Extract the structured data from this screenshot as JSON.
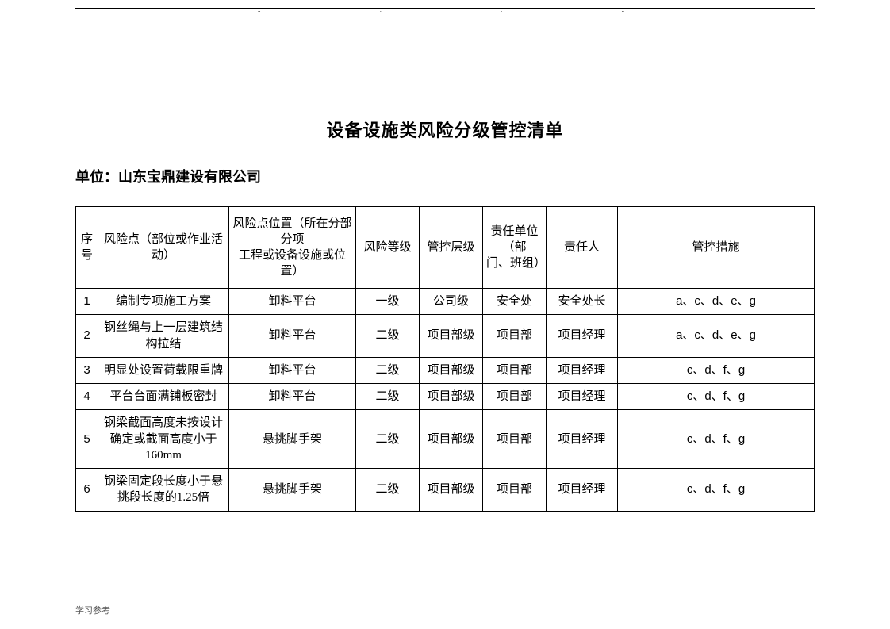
{
  "header_ticks": [
    "..",
    ".",
    ".",
    ".."
  ],
  "title": "设备设施类风险分级管控清单",
  "org_label": "单位：",
  "org_name": "山东宝鼎建设有限公司",
  "columns": {
    "seq": "序号",
    "risk": "风险点（部位或作业活动）",
    "loc_l1": "风险点位置（所在分部分项",
    "loc_l2": "工程或设备设施或位置）",
    "level": "风险等级",
    "ctrl": "管控层级",
    "unit_l1": "责任单位（部",
    "unit_l2": "门、班组）",
    "resp": "责任人",
    "measure": "管控措施"
  },
  "rows": [
    {
      "seq": "1",
      "risk": "编制专项施工方案",
      "loc": "卸料平台",
      "level": "一级",
      "ctrl": "公司级",
      "unit": "安全处",
      "resp": "安全处长",
      "measure": "a、c、d、e、g"
    },
    {
      "seq": "2",
      "risk": "钢丝绳与上一层建筑结构拉结",
      "loc": "卸料平台",
      "level": "二级",
      "ctrl": "项目部级",
      "unit": "项目部",
      "resp": "项目经理",
      "measure": "a、c、d、e、g"
    },
    {
      "seq": "3",
      "risk": "明显处设置荷载限重牌",
      "loc": "卸料平台",
      "level": "二级",
      "ctrl": "项目部级",
      "unit": "项目部",
      "resp": "项目经理",
      "measure": "c、d、f、g"
    },
    {
      "seq": "4",
      "risk": "平台台面满铺板密封",
      "loc": "卸料平台",
      "level": "二级",
      "ctrl": "项目部级",
      "unit": "项目部",
      "resp": "项目经理",
      "measure": "c、d、f、g"
    },
    {
      "seq": "5",
      "risk": "钢梁截面高度未按设计确定或截面高度小于160mm",
      "loc": "悬挑脚手架",
      "level": "二级",
      "ctrl": "项目部级",
      "unit": "项目部",
      "resp": "项目经理",
      "measure": "c、d、f、g"
    },
    {
      "seq": "6",
      "risk": "钢梁固定段长度小于悬挑段长度的1.25倍",
      "loc": "悬挑脚手架",
      "level": "二级",
      "ctrl": "项目部级",
      "unit": "项目部",
      "resp": "项目经理",
      "measure": "c、d、f、g"
    }
  ],
  "footer": "学习参考"
}
